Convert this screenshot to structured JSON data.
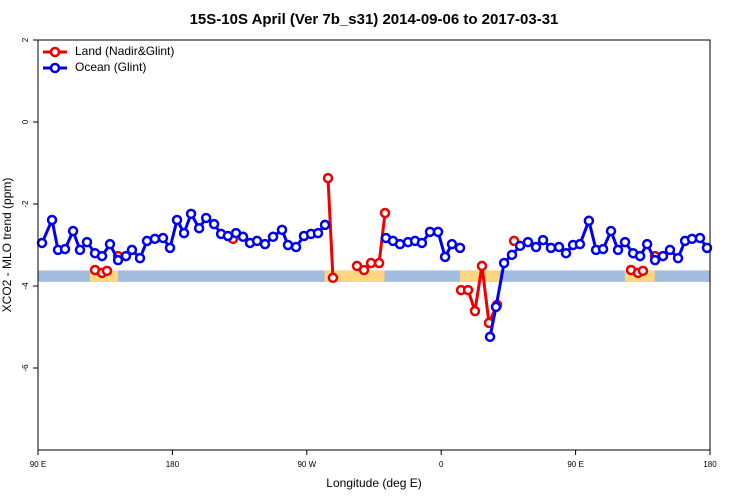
{
  "chart_data": {
    "type": "line",
    "title": "15S-10S April (Ver 7b_s31)   2014-09-06 to 2017-03-31",
    "x_label": "Longitude (deg E)",
    "y_label": "XCO2 - MLO trend (ppm)",
    "xlim": [
      90,
      540
    ],
    "xticks": [
      {
        "value": 90,
        "label": "90 E"
      },
      180,
      {
        "value": 270,
        "label": "90 W"
      },
      {
        "value": 360,
        "label": "0"
      },
      {
        "value": 450,
        "label": "90 E"
      },
      {
        "value": 540,
        "label": "180"
      }
    ],
    "ylim": [
      -8,
      2
    ],
    "yticks": [
      2,
      0,
      -2,
      -4,
      -6
    ],
    "legend": "top-left",
    "mask_band": [
      -3.62,
      -3.9
    ],
    "ocean_color": "#a3bde0",
    "land_color": "#fcd77f",
    "land_mask": [
      [
        124.8,
        143.6
      ],
      [
        282,
        322
      ],
      [
        372.6,
        399
      ],
      [
        483,
        503
      ]
    ],
    "series": [
      {
        "name": "Land (Nadir&Glint)",
        "color": "#ee0000",
        "x": [
          128.2,
          132.9,
          136.2,
          null,
          143.6,
          null,
          220.6,
          null,
          284.2,
          287.5,
          null,
          303.6,
          308.3,
          313.0,
          318.4,
          322.4,
          null,
          373.3,
          378.0,
          382.6,
          387.3,
          392.0,
          397.4,
          null,
          408.8,
          null,
          487.1,
          491.8,
          495.1,
          null,
          503.2
        ],
        "values": [
          -3.61,
          -3.68,
          -3.63,
          null,
          -3.27,
          null,
          -2.85,
          null,
          -1.37,
          -3.8,
          null,
          -3.51,
          -3.61,
          -3.44,
          -3.44,
          -2.22,
          null,
          -4.1,
          -4.1,
          -4.61,
          -3.51,
          -4.9,
          -4.46,
          null,
          -2.9,
          null,
          -3.61,
          -3.68,
          -3.63,
          null,
          -3.27
        ]
      },
      {
        "name": "Ocean (Glint)",
        "color": "#0000ee",
        "x": [
          92.7,
          99.4,
          103.4,
          108.1,
          113.5,
          118.1,
          122.8,
          128.2,
          132.9,
          138.2,
          143.6,
          148.9,
          152.9,
          158.3,
          163.0,
          168.3,
          173.7,
          178.4,
          183.1,
          187.8,
          192.5,
          197.9,
          202.6,
          207.9,
          212.6,
          217.2,
          222.6,
          227.3,
          232.0,
          236.7,
          242.0,
          247.4,
          253.4,
          257.4,
          262.8,
          268.1,
          272.8,
          277.5,
          282.2,
          null,
          323.0,
          327.7,
          332.4,
          337.8,
          342.5,
          347.1,
          352.5,
          357.9,
          362.6,
          367.2,
          372.6,
          null,
          392.7,
          396.7,
          402.1,
          407.4,
          412.8,
          418.1,
          423.5,
          428.2,
          433.5,
          438.9,
          443.6,
          448.3,
          452.9,
          458.9,
          463.7,
          468.4,
          473.7,
          478.4,
          483.1,
          488.5,
          493.2,
          497.9,
          503.2,
          508.5,
          513.2,
          518.6,
          523.3,
          528.0,
          533.3,
          538.0
        ],
        "values": [
          -2.95,
          -2.39,
          -3.12,
          -3.1,
          -2.66,
          -3.12,
          -2.93,
          -3.2,
          -3.27,
          -2.98,
          -3.37,
          -3.27,
          -3.12,
          -3.32,
          -2.9,
          -2.85,
          -2.83,
          -3.07,
          -2.39,
          -2.71,
          -2.24,
          -2.59,
          -2.34,
          -2.49,
          -2.73,
          -2.78,
          -2.71,
          -2.8,
          -2.95,
          -2.9,
          -2.98,
          -2.8,
          -2.63,
          -3.0,
          -3.05,
          -2.78,
          -2.73,
          -2.71,
          -2.51,
          null,
          -2.83,
          -2.9,
          -2.98,
          -2.93,
          -2.9,
          -2.95,
          -2.68,
          -2.68,
          -3.29,
          -2.98,
          -3.07,
          null,
          -5.24,
          -4.51,
          -3.44,
          -3.24,
          -3.02,
          -2.93,
          -3.05,
          -2.88,
          -3.07,
          -3.05,
          -3.2,
          -3.0,
          -2.98,
          -2.41,
          -3.12,
          -3.1,
          -2.66,
          -3.12,
          -2.93,
          -3.2,
          -3.27,
          -2.98,
          -3.37,
          -3.27,
          -3.12,
          -3.32,
          -2.9,
          -2.85,
          -2.83,
          -3.07
        ]
      }
    ]
  }
}
